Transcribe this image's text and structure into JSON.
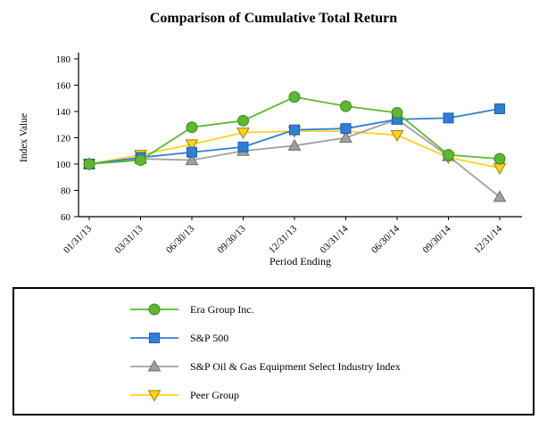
{
  "chart_data": {
    "type": "line",
    "title": "Comparison of Cumulative Total Return",
    "xlabel": "Period Ending",
    "ylabel": "Index Value",
    "ylim": [
      60,
      180
    ],
    "yticks": [
      60,
      80,
      100,
      120,
      140,
      160,
      180
    ],
    "grid": false,
    "legend_position": "bottom-box",
    "categories": [
      "01/31/13",
      "03/31/13",
      "06/30/13",
      "09/30/13",
      "12/31/13",
      "03/31/14",
      "06/30/14",
      "09/30/14",
      "12/31/14"
    ],
    "series": [
      {
        "name": "Era Group Inc.",
        "marker": "circle",
        "color": "#5cb82e",
        "edge": "#3a8a1a",
        "values": [
          100,
          103,
          128,
          133,
          151,
          144,
          139,
          107,
          104
        ]
      },
      {
        "name": "S&P 500",
        "marker": "square",
        "color": "#2f7ed8",
        "edge": "#1c5fb0",
        "values": [
          100,
          105,
          109,
          113,
          126,
          127,
          134,
          135,
          142
        ]
      },
      {
        "name": "S&P Oil & Gas Equipment Select Industry Index",
        "marker": "triangle-up",
        "color": "#a0a0a0",
        "edge": "#6e6e6e",
        "values": [
          100,
          104,
          103,
          110,
          114,
          120,
          134,
          106,
          75
        ]
      },
      {
        "name": "Peer Group",
        "marker": "triangle-down",
        "color": "#ffd21e",
        "edge": "#9c8100",
        "values": [
          100,
          107,
          115,
          124,
          125,
          125,
          122,
          105,
          97
        ]
      }
    ]
  }
}
